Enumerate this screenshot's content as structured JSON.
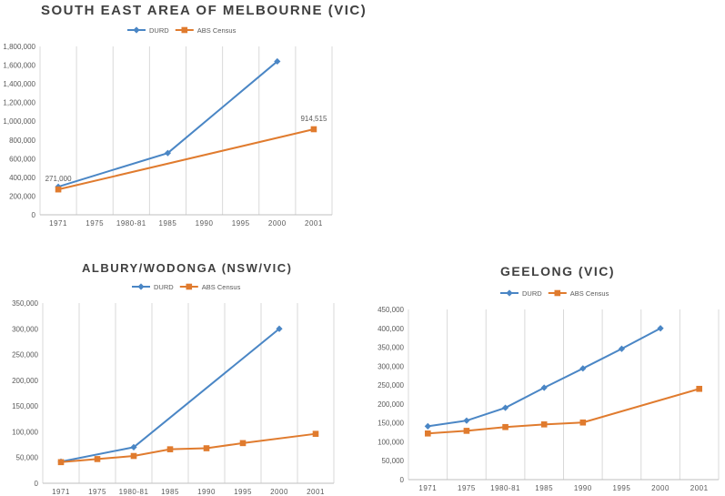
{
  "chart_data": [
    {
      "type": "line",
      "title": "SOUTH EAST AREA OF MELBOURNE (VIC)",
      "categories": [
        "1971",
        "1975",
        "1980-81",
        "1985",
        "1990",
        "1995",
        "2000",
        "2001"
      ],
      "ylim": [
        0,
        1800000
      ],
      "y_ticks": [
        "0",
        "200,000",
        "400,000",
        "600,000",
        "800,000",
        "1,000,000",
        "1,200,000",
        "1,400,000",
        "1,600,000",
        "1,800,000"
      ],
      "grid": "vertical",
      "legend": "top",
      "series": [
        {
          "name": "DURD",
          "color": "#4a86c5",
          "marker": "diamond",
          "values": [
            300000,
            null,
            null,
            660000,
            null,
            null,
            1640000,
            null
          ]
        },
        {
          "name": "ABS Census",
          "color": "#e07b2e",
          "marker": "square",
          "values": [
            271000,
            null,
            null,
            null,
            null,
            null,
            null,
            914515
          ]
        }
      ],
      "data_labels": [
        {
          "series": 1,
          "index": 0,
          "text": "271,000"
        },
        {
          "series": 1,
          "index": 7,
          "text": "914,515"
        }
      ]
    },
    {
      "type": "line",
      "title": "ALBURY/WODONGA (NSW/VIC)",
      "categories": [
        "1971",
        "1975",
        "1980-81",
        "1985",
        "1990",
        "1995",
        "2000",
        "2001"
      ],
      "ylim": [
        0,
        350000
      ],
      "y_ticks": [
        "0",
        "50,000",
        "100,000",
        "150,000",
        "200,000",
        "250,000",
        "300,000",
        "350,000"
      ],
      "grid": "vertical",
      "legend": "top",
      "series": [
        {
          "name": "DURD",
          "color": "#4a86c5",
          "marker": "diamond",
          "values": [
            42000,
            null,
            70000,
            null,
            null,
            null,
            300000,
            null
          ]
        },
        {
          "name": "ABS Census",
          "color": "#e07b2e",
          "marker": "square",
          "values": [
            41000,
            47000,
            53000,
            66000,
            68000,
            78000,
            null,
            96000
          ]
        }
      ],
      "data_labels": []
    },
    {
      "type": "line",
      "title": "GEELONG (VIC)",
      "categories": [
        "1971",
        "1975",
        "1980-81",
        "1985",
        "1990",
        "1995",
        "2000",
        "2001"
      ],
      "ylim": [
        0,
        450000
      ],
      "y_ticks": [
        "0",
        "50,000",
        "100,000",
        "150,000",
        "200,000",
        "250,000",
        "300,000",
        "350,000",
        "400,000",
        "450,000"
      ],
      "grid": "vertical",
      "legend": "top",
      "series": [
        {
          "name": "DURD",
          "color": "#4a86c5",
          "marker": "diamond",
          "values": [
            141000,
            156000,
            190000,
            243000,
            294000,
            346000,
            400000,
            null
          ]
        },
        {
          "name": "ABS Census",
          "color": "#e07b2e",
          "marker": "square",
          "values": [
            122000,
            129000,
            139000,
            146000,
            151000,
            null,
            null,
            240000
          ]
        }
      ],
      "data_labels": []
    }
  ]
}
